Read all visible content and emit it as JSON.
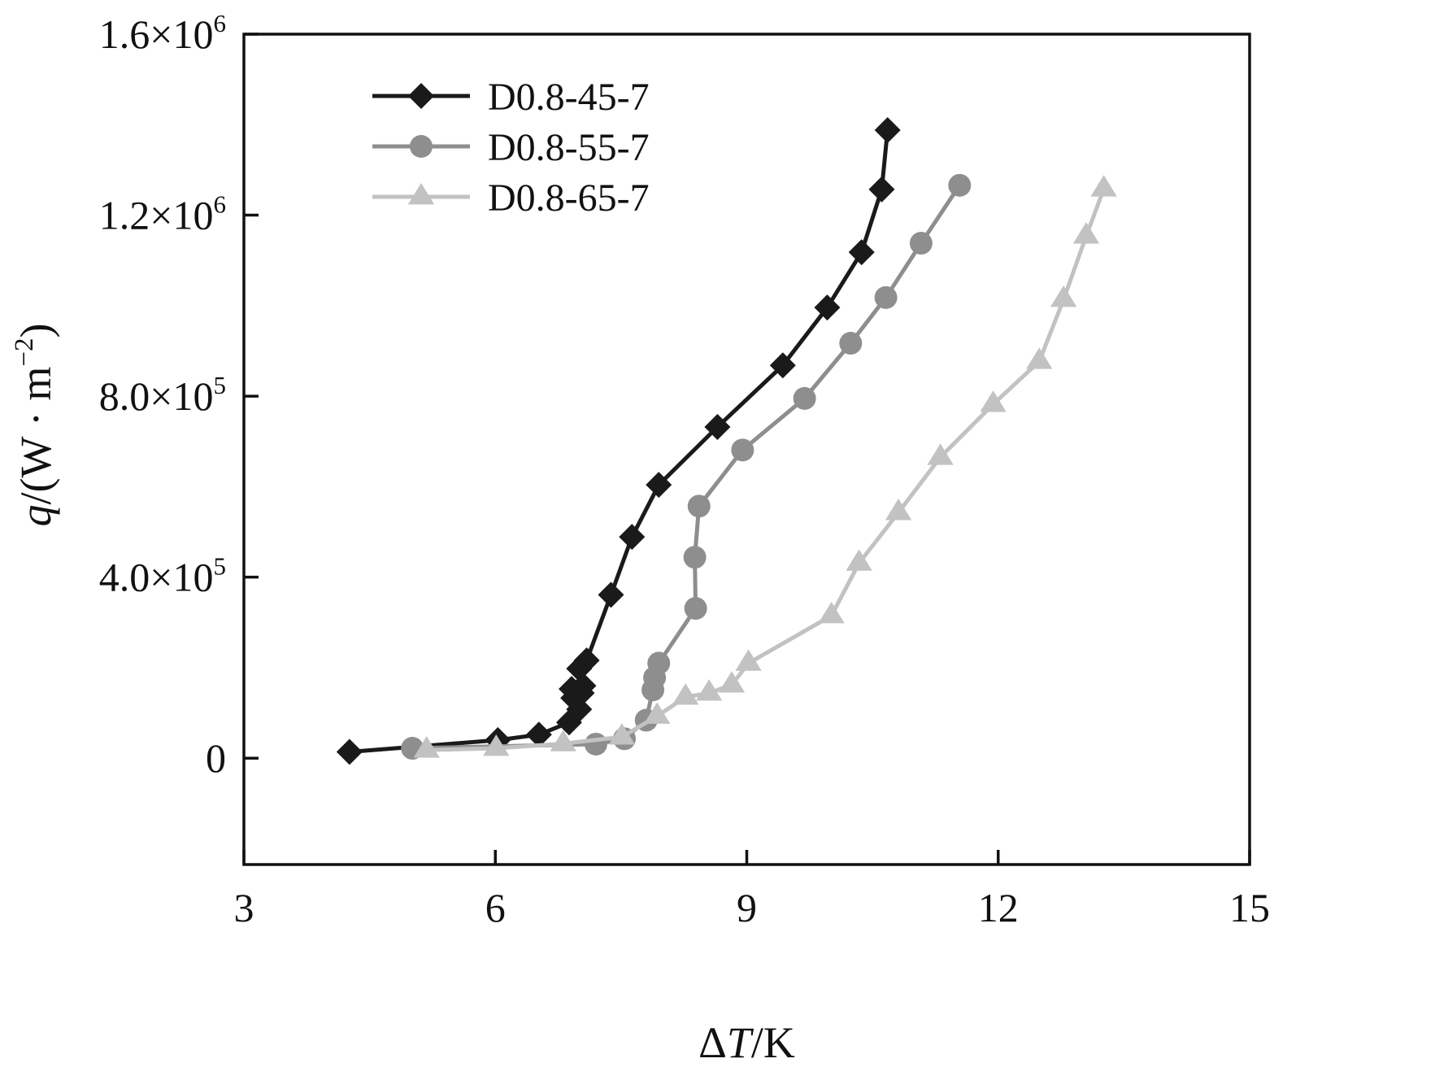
{
  "chart_data": {
    "type": "line",
    "title": "",
    "xlabel_parts": [
      {
        "t": "Δ"
      },
      {
        "t": "T",
        "i": true
      },
      {
        "t": "/K"
      }
    ],
    "ylabel_parts": [
      {
        "t": "q",
        "i": true
      },
      {
        "t": "/(W · m"
      },
      {
        "t": "−2",
        "sup": true
      },
      {
        "t": ")"
      }
    ],
    "xlim": [
      3,
      15
    ],
    "ylim": [
      -235000,
      1600000
    ],
    "grid": false,
    "legend_position": "top-left-inside",
    "x_ticks": [
      {
        "v": 3,
        "label": "3"
      },
      {
        "v": 6,
        "label": "6"
      },
      {
        "v": 9,
        "label": "9"
      },
      {
        "v": 12,
        "label": "12"
      },
      {
        "v": 15,
        "label": "15"
      }
    ],
    "y_ticks": [
      {
        "v": 0,
        "label": "0"
      },
      {
        "v": 400000,
        "label": "4.0×10^5"
      },
      {
        "v": 800000,
        "label": "8.0×10^5"
      },
      {
        "v": 1200000,
        "label": "1.2×10^6"
      },
      {
        "v": 1600000,
        "label": "1.6×10^6"
      }
    ],
    "series": [
      {
        "name": "D0.8-45-7",
        "marker": "diamond",
        "color": "#1a1a1a",
        "line_width": 5,
        "marker_size": 16,
        "points": [
          [
            4.26,
            14000
          ],
          [
            6.03,
            40000
          ],
          [
            6.52,
            52000
          ],
          [
            6.88,
            79000
          ],
          [
            7.0,
            108000
          ],
          [
            6.93,
            133000
          ],
          [
            7.03,
            144000
          ],
          [
            6.91,
            153000
          ],
          [
            7.05,
            160000
          ],
          [
            7.0,
            198000
          ],
          [
            7.09,
            216000
          ],
          [
            7.38,
            361000
          ],
          [
            7.63,
            489000
          ],
          [
            7.95,
            604000
          ],
          [
            8.65,
            732000
          ],
          [
            9.43,
            868000
          ],
          [
            9.96,
            996000
          ],
          [
            10.37,
            1118000
          ],
          [
            10.61,
            1257000
          ],
          [
            10.68,
            1388000
          ]
        ]
      },
      {
        "name": "D0.8-55-7",
        "marker": "circle",
        "color": "#8e8e8e",
        "line_width": 5,
        "marker_size": 14,
        "points": [
          [
            5.01,
            22000
          ],
          [
            7.2,
            31000
          ],
          [
            7.54,
            43000
          ],
          [
            7.8,
            84000
          ],
          [
            7.88,
            151000
          ],
          [
            7.9,
            178000
          ],
          [
            7.95,
            210000
          ],
          [
            8.39,
            331000
          ],
          [
            8.38,
            444000
          ],
          [
            8.43,
            557000
          ],
          [
            8.95,
            681000
          ],
          [
            9.69,
            795000
          ],
          [
            10.24,
            917000
          ],
          [
            10.66,
            1018000
          ],
          [
            11.08,
            1138000
          ],
          [
            11.54,
            1266000
          ]
        ]
      },
      {
        "name": "D0.8-65-7",
        "marker": "triangle",
        "color": "#c2c2c2",
        "line_width": 5,
        "marker_size": 17,
        "points": [
          [
            5.18,
            18000
          ],
          [
            6.01,
            22000
          ],
          [
            6.81,
            32000
          ],
          [
            7.51,
            47000
          ],
          [
            7.93,
            93000
          ],
          [
            8.27,
            135000
          ],
          [
            8.55,
            144000
          ],
          [
            8.82,
            162000
          ],
          [
            9.02,
            210000
          ],
          [
            10.01,
            315000
          ],
          [
            10.34,
            431000
          ],
          [
            10.81,
            543000
          ],
          [
            11.31,
            665000
          ],
          [
            11.94,
            782000
          ],
          [
            12.49,
            877000
          ],
          [
            12.78,
            1014000
          ],
          [
            13.05,
            1154000
          ],
          [
            13.26,
            1258000
          ]
        ]
      }
    ]
  }
}
